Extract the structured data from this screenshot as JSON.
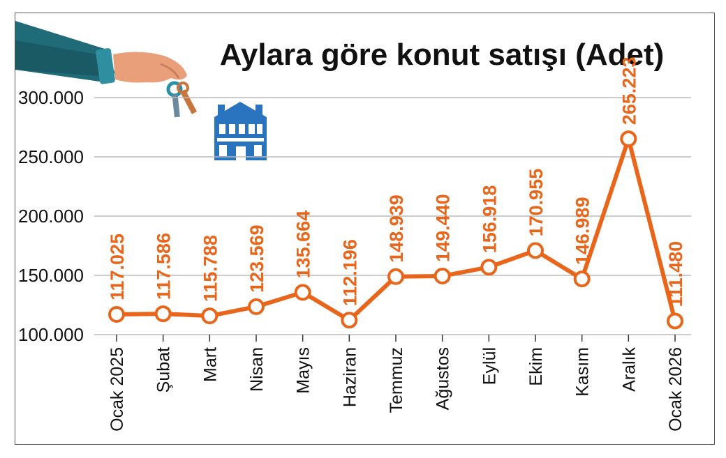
{
  "chart_data": {
    "type": "line",
    "title": "Aylara göre konut satışı  (Adet)",
    "xlabel": "",
    "ylabel": "",
    "categories": [
      "Ocak 2025",
      "Şubat",
      "Mart",
      "Nisan",
      "Mayıs",
      "Haziran",
      "Temmuz",
      "Ağustos",
      "Eylül",
      "Ekim",
      "Kasım",
      "Aralık",
      "Ocak 2026"
    ],
    "series": [
      {
        "values": [
          117025,
          117586,
          115788,
          123569,
          135664,
          112196,
          148939,
          149440,
          156918,
          170955,
          146989,
          265223,
          111480
        ]
      }
    ],
    "data_labels": [
      "117.025",
      "117.586",
      "115.788",
      "123.569",
      "135.664",
      "112.196",
      "148.939",
      "149.440",
      "156.918",
      "170.955",
      "146.989",
      "265.223",
      "111.480"
    ],
    "yticks": [
      100000,
      150000,
      200000,
      250000,
      300000
    ],
    "ytick_labels": [
      "100.000",
      "150.000",
      "200.000",
      "250.000",
      "300.000"
    ],
    "ylim": [
      100000,
      300000
    ],
    "grid": true,
    "legend": "none",
    "colors": {
      "line": "#e8651a",
      "marker_fill": "#ffffff",
      "grid": "#bbbbbb",
      "text": "#111111"
    }
  },
  "illustration": {
    "icons": [
      "hand-holding-keys-icon",
      "house-icon"
    ],
    "colors": {
      "sleeve": "#1f6b78",
      "skin": "#e9a07a",
      "house": "#2a73bf",
      "key": "#c8743a"
    }
  }
}
